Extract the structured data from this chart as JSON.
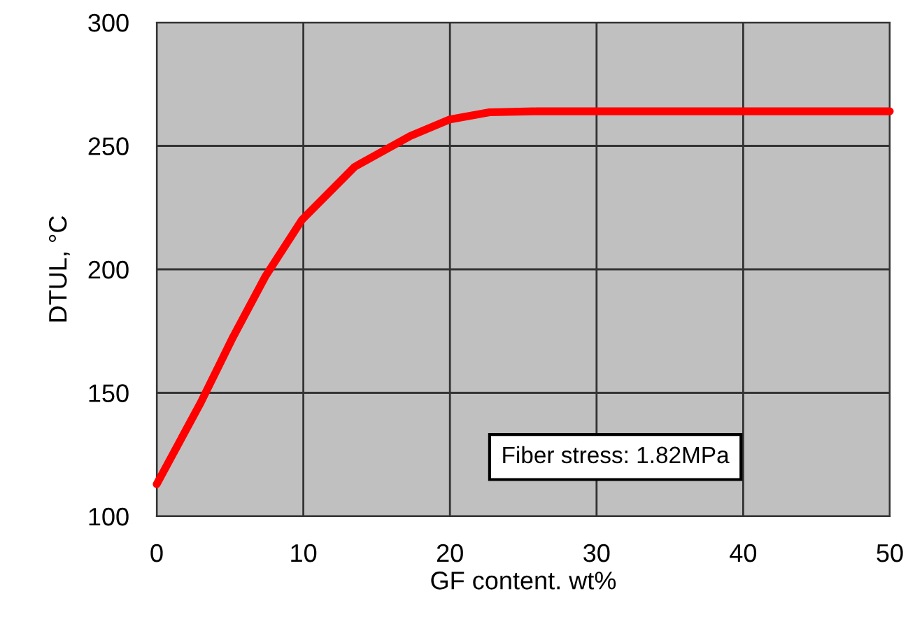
{
  "chart_data": {
    "type": "line",
    "xlabel": "GF content. wt%",
    "ylabel": "DTUL, °C",
    "series": [
      {
        "color": "#ff0000",
        "x": [
          0,
          3.0,
          5.2,
          7.4,
          9.9,
          13.5,
          17.3,
          20,
          22.7,
          25.9,
          30,
          40,
          50
        ],
        "values": [
          113,
          146,
          172.5,
          197,
          220,
          241.5,
          254,
          260.7,
          263.6,
          264,
          264,
          264,
          264
        ]
      }
    ],
    "xlim": [
      0,
      50
    ],
    "xticks": [
      0,
      10,
      20,
      30,
      40,
      50
    ],
    "ylim": [
      100,
      300
    ],
    "yticks": [
      100,
      150,
      200,
      250,
      300
    ],
    "grid": true,
    "annotations": [
      {
        "text": "Fiber stress: 1.82MPa"
      }
    ]
  }
}
